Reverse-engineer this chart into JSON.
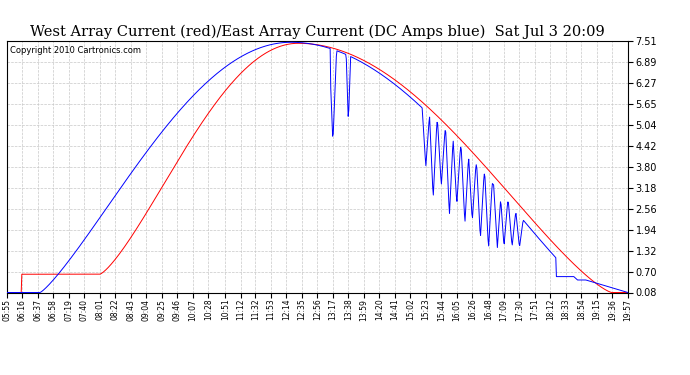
{
  "title": "West Array Current (red)/East Array Current (DC Amps blue)  Sat Jul 3 20:09",
  "copyright": "Copyright 2010 Cartronics.com",
  "y_ticks": [
    0.08,
    0.7,
    1.32,
    1.94,
    2.56,
    3.18,
    3.8,
    4.42,
    5.04,
    5.65,
    6.27,
    6.89,
    7.51
  ],
  "y_min": 0.08,
  "y_max": 7.51,
  "bg_color": "#ffffff",
  "grid_color": "#c8c8c8",
  "red_color": "#ff0000",
  "blue_color": "#0000ff",
  "title_fontsize": 10.5,
  "x_tick_labels": [
    "05:55",
    "06:16",
    "06:37",
    "06:58",
    "07:19",
    "07:40",
    "08:01",
    "08:22",
    "08:43",
    "09:04",
    "09:25",
    "09:46",
    "10:07",
    "10:28",
    "10:51",
    "11:12",
    "11:32",
    "11:53",
    "12:14",
    "12:35",
    "12:56",
    "13:17",
    "13:38",
    "13:59",
    "14:20",
    "14:41",
    "15:02",
    "15:23",
    "15:44",
    "16:05",
    "16:26",
    "16:48",
    "17:09",
    "17:30",
    "17:51",
    "18:12",
    "18:33",
    "18:54",
    "19:15",
    "19:36",
    "19:57"
  ]
}
